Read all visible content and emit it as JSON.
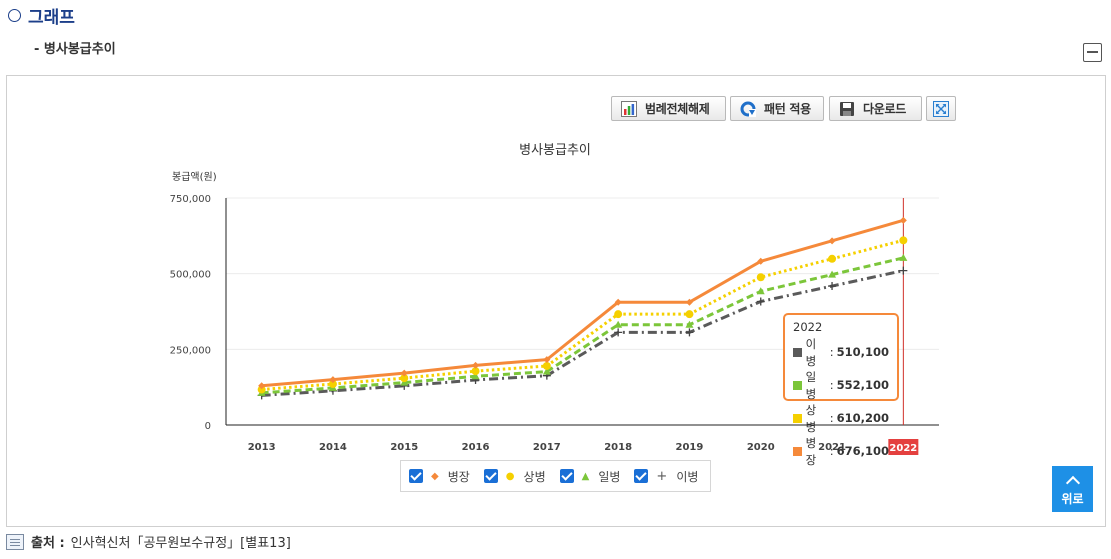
{
  "section_title": "그래프",
  "sub_title": "- 병사봉급추이",
  "toolbar": {
    "legend_off_label": "범례전체해제",
    "pattern_label": "패턴 적용",
    "download_label": "다운로드"
  },
  "chart_data": {
    "type": "line",
    "title": "병사봉급추이",
    "ylabel": "봉급액(원)",
    "xlabel": "",
    "categories": [
      "2013",
      "2014",
      "2015",
      "2016",
      "2017",
      "2018",
      "2019",
      "2020",
      "2021",
      "2022"
    ],
    "ylim": [
      0,
      750000
    ],
    "yticks": [
      "0",
      "250,000",
      "500,000",
      "750,000"
    ],
    "ytick_values": [
      0,
      250000,
      500000,
      750000
    ],
    "grid": true,
    "legend_position": "bottom",
    "highlighted_category": "2022",
    "series": [
      {
        "name": "병장",
        "color": "#f5893a",
        "dash": "solid",
        "marker": "diamond",
        "values": [
          129600,
          149800,
          171400,
          197100,
          216000,
          405700,
          405700,
          540900,
          608500,
          676100
        ]
      },
      {
        "name": "상병",
        "color": "#f5d000",
        "dash": "dotted",
        "marker": "circle",
        "values": [
          117200,
          135400,
          154900,
          178000,
          195000,
          366200,
          366200,
          488200,
          549200,
          610200
        ]
      },
      {
        "name": "일병",
        "color": "#7cc63a",
        "dash": "dashed",
        "marker": "triangle",
        "values": [
          106000,
          122500,
          140100,
          161000,
          176400,
          331300,
          331300,
          441700,
          496900,
          552100
        ]
      },
      {
        "name": "이병",
        "color": "#5a5a5a",
        "dash": "dashdot",
        "marker": "plus",
        "values": [
          97800,
          113000,
          129300,
          148700,
          163000,
          306100,
          306100,
          408100,
          459100,
          510100
        ]
      }
    ]
  },
  "tooltip": {
    "title": "2022",
    "rows": [
      {
        "label": "이병",
        "value": "510,100",
        "color": "#5a5a5a"
      },
      {
        "label": "일병",
        "value": "552,100",
        "color": "#7cc63a"
      },
      {
        "label": "상병",
        "value": "610,200",
        "color": "#f5d000"
      },
      {
        "label": "병장",
        "value": "676,100",
        "color": "#f5893a"
      }
    ]
  },
  "legend": [
    {
      "label": "병장",
      "marker": "◆",
      "color": "#f5893a"
    },
    {
      "label": "상병",
      "marker": "●",
      "color": "#f5d000"
    },
    {
      "label": "일병",
      "marker": "▲",
      "color": "#7cc63a"
    },
    {
      "label": "이병",
      "marker": "+",
      "color": "#5a5a5a"
    }
  ],
  "back_to_top_label": "위로",
  "source": {
    "label": "출처 :",
    "text": "인사혁신처「공무원보수규정」[별표13]"
  }
}
